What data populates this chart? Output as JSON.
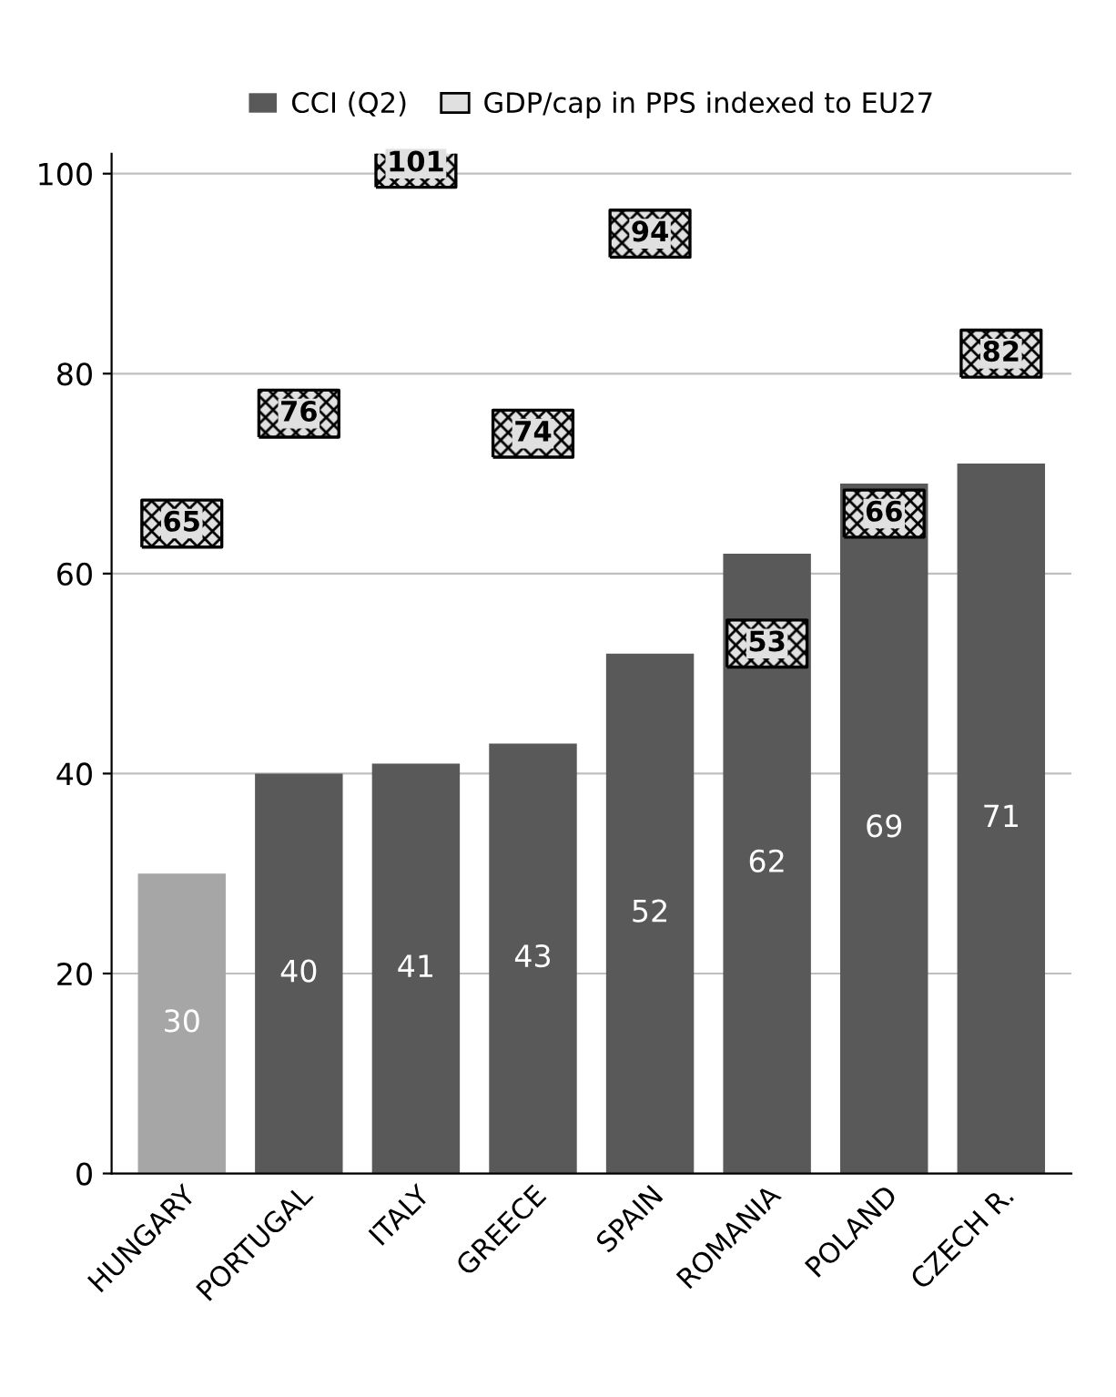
{
  "chart_data": {
    "type": "bar",
    "categories": [
      "HUNGARY",
      "PORTUGAL",
      "ITALY",
      "GREECE",
      "SPAIN",
      "ROMANIA",
      "POLAND",
      "CZECH R."
    ],
    "series": [
      {
        "name": "CCI (Q2)",
        "color": "#595959",
        "colors": [
          "#a6a6a6",
          "#595959",
          "#595959",
          "#595959",
          "#595959",
          "#595959",
          "#595959",
          "#595959"
        ],
        "values": [
          30,
          40,
          41,
          43,
          52,
          62,
          69,
          71
        ]
      },
      {
        "name": "GDP/cap in PPS indexed to EU27",
        "type": "scatter",
        "marker": "square",
        "color": "#e0e0e0",
        "values": [
          65,
          76,
          101,
          74,
          94,
          53,
          66,
          82
        ]
      }
    ],
    "ylim": [
      0,
      102
    ],
    "yticks": [
      0,
      20,
      40,
      60,
      80,
      100
    ],
    "grid": "y",
    "legend": "top",
    "data_labels": true
  }
}
